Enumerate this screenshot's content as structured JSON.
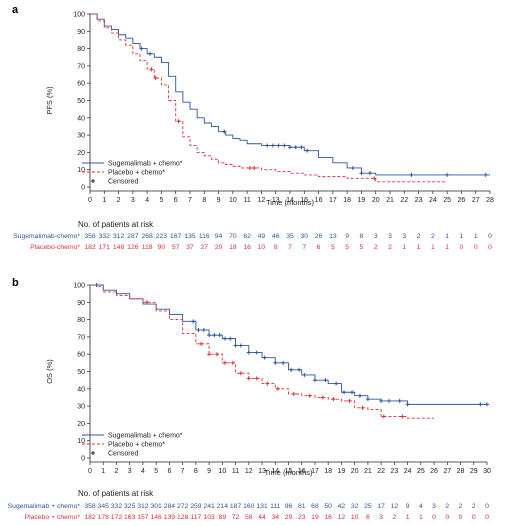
{
  "colors": {
    "blue": "#2e5597",
    "red": "#d6303a",
    "axis": "#222222"
  },
  "chart_data": [
    {
      "type": "line",
      "panel_label": "a",
      "ylabel": "PFS (%)",
      "xlabel": "Time (months)",
      "xlim": [
        0,
        28
      ],
      "ylim": [
        0,
        100
      ],
      "xticks": [
        "0",
        "1",
        "2",
        "3",
        "4",
        "5",
        "6",
        "7",
        "8",
        "9",
        "10",
        "11",
        "12",
        "13",
        "14",
        "15",
        "16",
        "17",
        "18",
        "19",
        "20",
        "21",
        "22",
        "23",
        "24",
        "25",
        "26",
        "27",
        "28"
      ],
      "yticks": [
        "0",
        "10",
        "20",
        "30",
        "40",
        "50",
        "60",
        "70",
        "80",
        "90",
        "100"
      ],
      "legend": [
        "Sugemalimab + chemo*",
        "Placebo + chemo*",
        "Censored"
      ],
      "series": [
        {
          "name": "Sugemalimab + chemo*",
          "color": "#2e5597",
          "style": "solid",
          "x": [
            0,
            0.5,
            1,
            1.5,
            2,
            2.5,
            3,
            3.5,
            4,
            4.5,
            5,
            5.5,
            6,
            6.5,
            7,
            7.5,
            8,
            8.5,
            9,
            9.5,
            10,
            10.5,
            11,
            12,
            13,
            14,
            15,
            16,
            17,
            18,
            19,
            20,
            21,
            22,
            23,
            24,
            25,
            26,
            27,
            28
          ],
          "y": [
            100,
            97,
            93,
            91,
            88,
            86,
            83,
            80,
            77,
            75,
            72,
            64,
            55,
            49,
            45,
            40,
            37,
            35,
            32,
            30,
            28,
            27,
            25,
            24,
            24,
            23,
            21,
            17,
            14,
            11,
            8,
            7,
            7,
            7,
            7,
            7,
            7,
            7,
            7,
            7
          ]
        },
        {
          "name": "Placebo + chemo*",
          "color": "#d6303a",
          "style": "dashed",
          "x": [
            0,
            0.5,
            1,
            1.5,
            2,
            2.5,
            3,
            3.5,
            4,
            4.5,
            5,
            5.5,
            6,
            6.5,
            7,
            7.5,
            8,
            8.5,
            9,
            9.5,
            10,
            10.5,
            11,
            12,
            13,
            14,
            15,
            16,
            17,
            18,
            19,
            20,
            21,
            22,
            23,
            24,
            25
          ],
          "y": [
            100,
            96,
            92,
            89,
            85,
            82,
            77,
            73,
            68,
            63,
            59,
            50,
            38,
            29,
            24,
            20,
            18,
            16,
            14,
            13,
            12,
            11,
            11,
            10,
            9,
            8,
            7,
            6,
            6,
            5,
            5,
            3,
            3,
            3,
            3,
            3,
            3
          ]
        }
      ],
      "censored": [
        {
          "series": 0,
          "x": [
            3.6,
            4.2,
            9.4,
            12.4,
            12.8,
            13.2,
            13.6,
            14.0,
            14.4,
            14.8,
            15.2,
            18.4,
            19.0,
            19.6,
            22.5,
            25.0,
            27.7
          ]
        },
        {
          "series": 1,
          "x": [
            4.3,
            4.6,
            6.2,
            11.2,
            11.5,
            19.9
          ]
        }
      ],
      "risk_table": {
        "title": "No. of patients at risk",
        "rows": [
          {
            "label": "Sugemalimab-chemo*",
            "color": "#2e5597",
            "values": [
              "358",
              "332",
              "312",
              "287",
              "268",
              "223",
              "167",
              "135",
              "116",
              "94",
              "70",
              "62",
              "49",
              "46",
              "35",
              "30",
              "26",
              "13",
              "9",
              "8",
              "3",
              "3",
              "3",
              "2",
              "2",
              "1",
              "1",
              "1",
              "0"
            ]
          },
          {
            "label": "Placebo-chemo*",
            "color": "#d6303a",
            "values": [
              "182",
              "171",
              "148",
              "126",
              "118",
              "90",
              "57",
              "37",
              "27",
              "20",
              "18",
              "16",
              "10",
              "8",
              "7",
              "7",
              "6",
              "5",
              "5",
              "5",
              "2",
              "2",
              "1",
              "1",
              "1",
              "1",
              "0",
              "0",
              "0"
            ]
          }
        ]
      }
    },
    {
      "type": "line",
      "panel_label": "b",
      "ylabel": "OS (%)",
      "xlabel": "Time (months)",
      "xlim": [
        0,
        30
      ],
      "ylim": [
        0,
        100
      ],
      "xticks": [
        "0",
        "1",
        "2",
        "3",
        "4",
        "5",
        "6",
        "7",
        "8",
        "9",
        "10",
        "11",
        "12",
        "13",
        "14",
        "15",
        "16",
        "17",
        "18",
        "19",
        "20",
        "21",
        "22",
        "23",
        "24",
        "25",
        "26",
        "27",
        "28",
        "29",
        "30"
      ],
      "yticks": [
        "0",
        "10",
        "20",
        "30",
        "40",
        "50",
        "60",
        "70",
        "80",
        "90",
        "100"
      ],
      "legend": [
        "Sugemalimab + chemo*",
        "Placebo + chemo*",
        "Censored"
      ],
      "series": [
        {
          "name": "Sugemalimab + chemo*",
          "color": "#2e5597",
          "style": "solid",
          "x": [
            0,
            0.5,
            1,
            2,
            3,
            4,
            5,
            6,
            7,
            8,
            9,
            10,
            11,
            12,
            13,
            14,
            15,
            16,
            17,
            18,
            19,
            20,
            21,
            22,
            23,
            24,
            25,
            26,
            27,
            28,
            29,
            30
          ],
          "y": [
            100,
            100,
            97,
            95,
            92,
            89,
            86,
            83,
            79,
            74,
            71,
            69,
            65,
            61,
            58,
            55,
            51,
            48,
            45,
            43,
            38,
            36,
            34,
            33,
            33,
            31,
            31,
            31,
            31,
            31,
            31,
            31
          ]
        },
        {
          "name": "Placebo + chemo*",
          "color": "#d6303a",
          "style": "dashed",
          "x": [
            0,
            0.5,
            1,
            2,
            3,
            4,
            5,
            6,
            7,
            8,
            9,
            10,
            11,
            12,
            13,
            14,
            15,
            16,
            17,
            18,
            19,
            20,
            21,
            22,
            23,
            24,
            25,
            26
          ],
          "y": [
            100,
            99,
            96,
            94,
            92,
            90,
            85,
            80,
            72,
            66,
            60,
            55,
            49,
            46,
            43,
            40,
            37,
            36,
            35,
            34,
            33,
            29,
            28,
            24,
            24,
            23,
            23,
            23
          ]
        }
      ],
      "censored": [
        {
          "series": 0,
          "x": [
            0.5,
            7.8,
            8.2,
            8.6,
            9.0,
            9.4,
            9.8,
            10.2,
            10.6,
            11.0,
            11.4,
            12.0,
            12.6,
            13.2,
            14.0,
            14.6,
            15.2,
            15.8,
            16.2,
            17.0,
            17.8,
            18.6,
            19.2,
            19.8,
            20.4,
            21.0,
            22.0,
            22.6,
            23.4,
            24.0,
            29.5,
            30.0
          ]
        },
        {
          "series": 1,
          "x": [
            4.3,
            8.4,
            9.0,
            9.6,
            10.2,
            10.8,
            11.4,
            12.0,
            12.6,
            13.4,
            14.2,
            15.4,
            16.6,
            17.6,
            18.4,
            19.6,
            20.6,
            22.2,
            23.6
          ]
        }
      ],
      "risk_table": {
        "title": "No. of patients at risk",
        "rows": [
          {
            "label": "Sugemalimab + chemo*",
            "color": "#2e5597",
            "values": [
              "358",
              "345",
              "332",
              "325",
              "312",
              "301",
              "284",
              "272",
              "259",
              "241",
              "214",
              "187",
              "160",
              "131",
              "111",
              "96",
              "81",
              "68",
              "50",
              "42",
              "32",
              "25",
              "17",
              "12",
              "9",
              "4",
              "3",
              "2",
              "2",
              "2",
              "0"
            ]
          },
          {
            "label": "Placebo + chemo*",
            "color": "#d6303a",
            "values": [
              "182",
              "178",
              "172",
              "163",
              "157",
              "146",
              "139",
              "128",
              "117",
              "103",
              "89",
              "72",
              "58",
              "44",
              "34",
              "29",
              "23",
              "19",
              "16",
              "12",
              "10",
              "6",
              "3",
              "2",
              "1",
              "1",
              "0",
              "0",
              "0",
              "0",
              "0"
            ]
          }
        ]
      }
    }
  ]
}
